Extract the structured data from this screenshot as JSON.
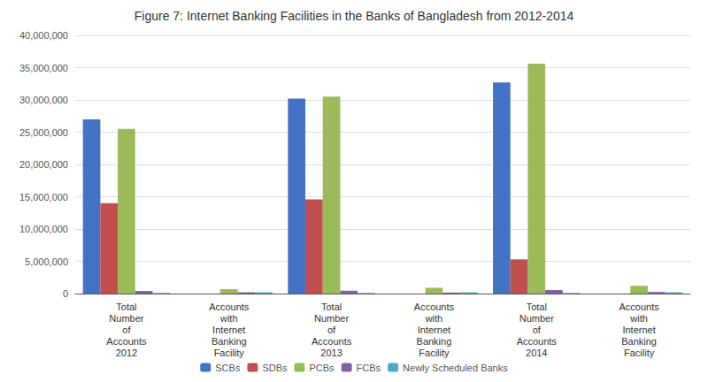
{
  "chart_data": {
    "type": "bar",
    "title": "Figure 7: Internet Banking Facilities in the Banks of Bangladesh from 2012-2014",
    "categories": [
      "Total\nNumber\nof\nAccounts\n2012",
      "Accounts\nwith\nInternet\nBanking\nFacility",
      "Total\nNumber\nof\nAccounts\n2013",
      "Accounts\nwith\nInternet\nBanking\nFacility",
      "Total\nNumber\nof\nAccounts\n2014",
      "Accounts\nwith\nInternet\nBanking\nFacility"
    ],
    "series": [
      {
        "name": "SCBs",
        "color": "#4472C4",
        "values": [
          27000000,
          0,
          30200000,
          0,
          32700000,
          0
        ]
      },
      {
        "name": "SDBs",
        "color": "#C0504D",
        "values": [
          14000000,
          0,
          14600000,
          0,
          5300000,
          0
        ]
      },
      {
        "name": "PCBs",
        "color": "#9BBB59",
        "values": [
          25500000,
          700000,
          30500000,
          900000,
          35600000,
          1200000
        ]
      },
      {
        "name": "FCBs",
        "color": "#8064A2",
        "values": [
          400000,
          200000,
          450000,
          150000,
          550000,
          250000
        ]
      },
      {
        "name": "Newly Scheduled Banks",
        "color": "#4BACC6",
        "values": [
          100000,
          200000,
          100000,
          200000,
          100000,
          200000
        ]
      }
    ],
    "ylim": [
      0,
      40000000
    ],
    "yticks": [
      0,
      {
        "value": 5000000,
        "label": "5,000,000"
      },
      {
        "value": 10000000,
        "label": "10,000,000"
      },
      {
        "value": 15000000,
        "label": "15,000,000"
      },
      {
        "value": 20000000,
        "label": "20,000,000"
      },
      {
        "value": 25000000,
        "label": "25,000,000"
      },
      {
        "value": 30000000,
        "label": "30,000,000"
      },
      {
        "value": 35000000,
        "label": "35,000,000"
      },
      {
        "value": 40000000,
        "label": "40,000,000"
      }
    ],
    "grid": true,
    "legend": "bottom"
  }
}
